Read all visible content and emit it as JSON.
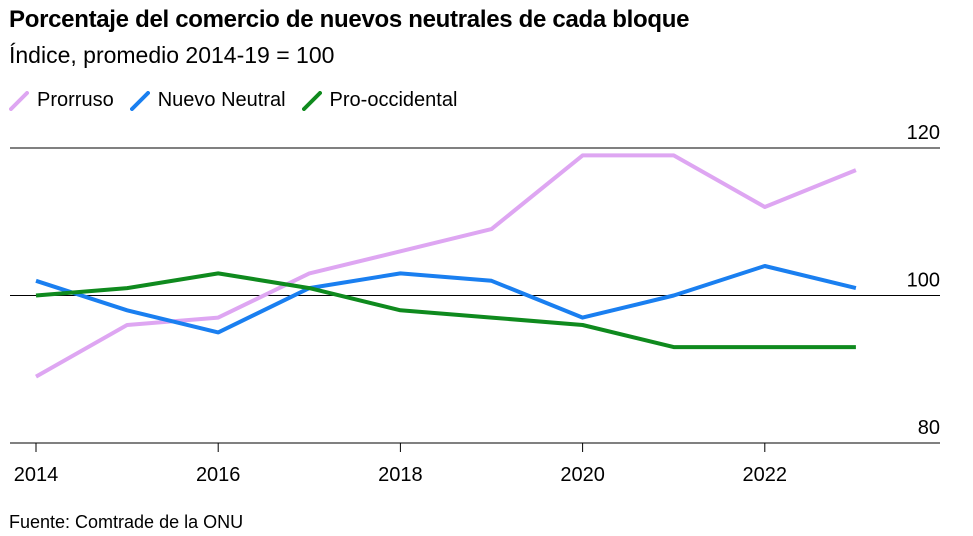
{
  "chart_data": {
    "type": "line",
    "title": "Porcentaje del comercio de nuevos neutrales de cada bloque",
    "subtitle": "Índice, promedio 2014-19 = 100",
    "x": [
      2014,
      2015,
      2016,
      2017,
      2018,
      2019,
      2020,
      2021,
      2022,
      2023
    ],
    "x_ticks": [
      "2014",
      "2016",
      "2018",
      "2020",
      "2022"
    ],
    "y_ticks": [
      "80",
      "100",
      "120"
    ],
    "ylim": [
      80,
      120
    ],
    "grid": true,
    "legend_position": "top-left",
    "series": [
      {
        "name": "Prorruso",
        "color": "#dea6f2",
        "values": [
          89,
          96,
          97,
          103,
          106,
          109,
          119,
          119,
          112,
          117
        ]
      },
      {
        "name": "Nuevo Neutral",
        "color": "#1a7ff0",
        "values": [
          102,
          98,
          95,
          101,
          103,
          102,
          97,
          100,
          104,
          101
        ]
      },
      {
        "name": "Pro-occidental",
        "color": "#0f8a1e",
        "values": [
          100,
          101,
          103,
          101,
          98,
          97,
          96,
          93,
          93,
          93
        ]
      }
    ]
  },
  "source": "Fuente: Comtrade de la ONU"
}
